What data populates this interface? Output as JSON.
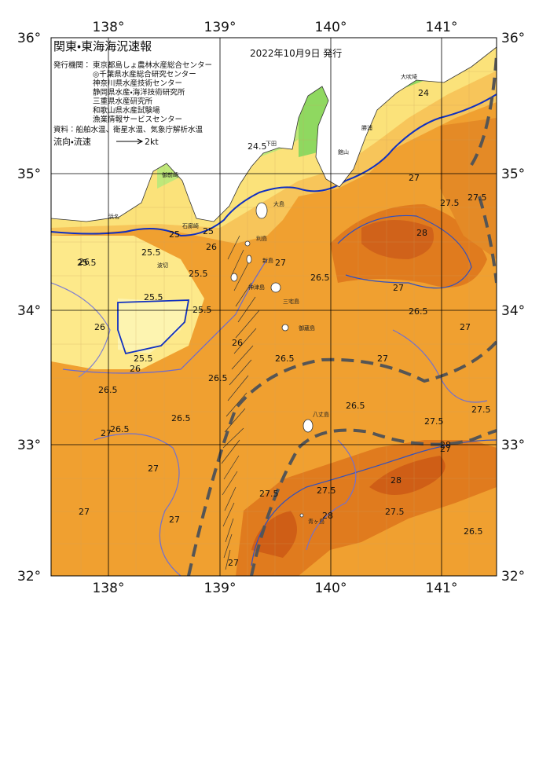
{
  "header": {
    "title": "関東・東海海況速報",
    "date": "2022年10月9日 発行"
  },
  "credits": {
    "label": "発行機関：",
    "institutions": [
      "東京都島しょ農林水産総合センター",
      "◎千葉県水産総合研究センター",
      "神奈川県水産技術センター",
      "静岡県水産・海洋技術研究所",
      "三重県水産研究所",
      "和歌山県水産試験場",
      "漁業情報サービスセンター"
    ]
  },
  "source": "資料：船舶水温、衛星水温、気象庁解析水温",
  "legend": {
    "label": "流向・流速",
    "speed": "2kt"
  },
  "axes": {
    "lon_labels": [
      "138°",
      "139°",
      "140°",
      "141°"
    ],
    "lat_labels": [
      "36°",
      "35°",
      "34°",
      "33°",
      "32°"
    ]
  },
  "places": [
    "大島",
    "利島",
    "新島",
    "神津島",
    "三宅島",
    "御蔵島",
    "八丈島",
    "青ヶ島",
    "大吠埼",
    "勝浦",
    "館山",
    "下田",
    "石廊崎",
    "御前崎",
    "浜名",
    "波切"
  ],
  "contour_labels": [
    "24",
    "24.5",
    "25",
    "25.5",
    "26",
    "26.5",
    "27",
    "25.5",
    "25.5",
    "25.5",
    "25.5",
    "25.5",
    "26",
    "26",
    "26",
    "26.5",
    "26.5",
    "26.5",
    "27",
    "27",
    "27",
    "27",
    "27.5",
    "27.5",
    "27.5",
    "28",
    "28",
    "28",
    "27.5",
    "27",
    "26.5",
    "26.5",
    "27",
    "27",
    "26.5",
    "27.5",
    "27.5",
    "28",
    "27",
    "26",
    "26.5",
    "27",
    "27.5",
    "25",
    "26.5",
    "27"
  ]
}
